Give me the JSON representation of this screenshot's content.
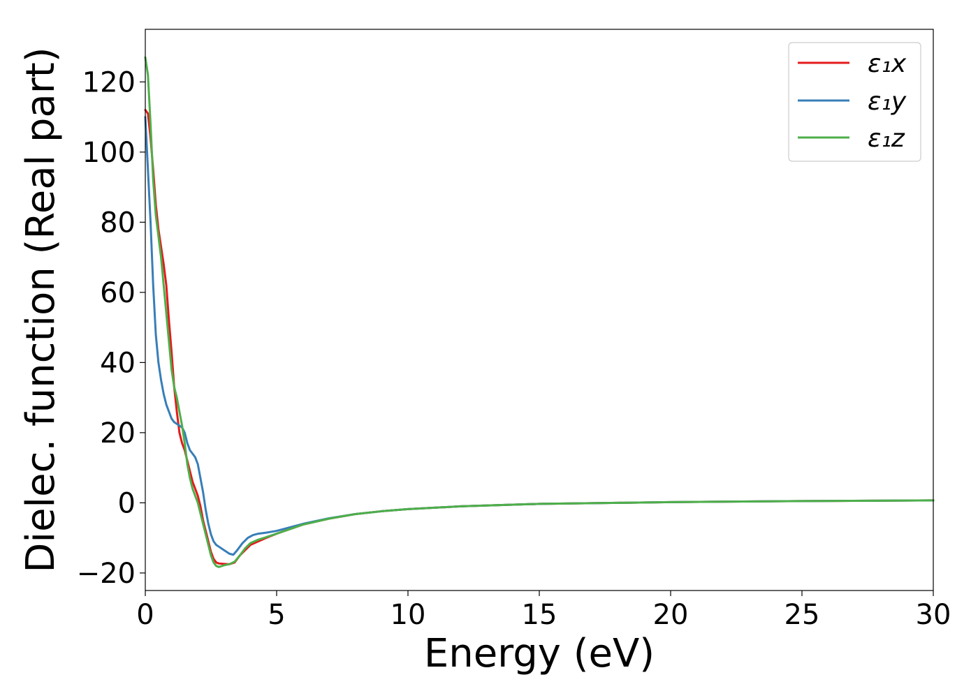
{
  "chart_data": {
    "type": "line",
    "title": "",
    "xlabel": "Energy (eV)",
    "ylabel": "Dielec. function (Real part)",
    "xlim": [
      0,
      30
    ],
    "ylim": [
      -25,
      135
    ],
    "x_ticks": [
      0,
      5,
      10,
      15,
      20,
      25,
      30
    ],
    "x_tick_labels": [
      "0",
      "5",
      "10",
      "15",
      "20",
      "25",
      "30"
    ],
    "y_ticks": [
      -20,
      0,
      20,
      40,
      60,
      80,
      100,
      120
    ],
    "y_tick_labels": [
      "−20",
      "0",
      "20",
      "40",
      "60",
      "80",
      "100",
      "120"
    ],
    "grid": false,
    "legend_position": "top-right",
    "series": [
      {
        "name": "ε₁x",
        "color": "#e41a1c",
        "points": [
          [
            0,
            112
          ],
          [
            0.1,
            111
          ],
          [
            0.2,
            104
          ],
          [
            0.3,
            95
          ],
          [
            0.4,
            85
          ],
          [
            0.5,
            78
          ],
          [
            0.6,
            73
          ],
          [
            0.7,
            68
          ],
          [
            0.8,
            62
          ],
          [
            0.9,
            52
          ],
          [
            1.0,
            43
          ],
          [
            1.1,
            33
          ],
          [
            1.2,
            26
          ],
          [
            1.3,
            20
          ],
          [
            1.4,
            17
          ],
          [
            1.5,
            15
          ],
          [
            1.6,
            12
          ],
          [
            1.7,
            9
          ],
          [
            1.8,
            6
          ],
          [
            1.9,
            4
          ],
          [
            2.0,
            2
          ],
          [
            2.1,
            -1
          ],
          [
            2.2,
            -5
          ],
          [
            2.3,
            -8
          ],
          [
            2.4,
            -11
          ],
          [
            2.5,
            -14
          ],
          [
            2.6,
            -16
          ],
          [
            2.7,
            -17
          ],
          [
            2.8,
            -17.3
          ],
          [
            3.0,
            -17.4
          ],
          [
            3.2,
            -17.5
          ],
          [
            3.4,
            -17
          ],
          [
            3.6,
            -15
          ],
          [
            3.8,
            -13.5
          ],
          [
            4.0,
            -12
          ],
          [
            4.3,
            -11
          ],
          [
            4.6,
            -10
          ],
          [
            5.0,
            -8.8
          ],
          [
            5.5,
            -7.5
          ],
          [
            6.0,
            -6.2
          ],
          [
            7.0,
            -4.5
          ],
          [
            8.0,
            -3.2
          ],
          [
            9.0,
            -2.4
          ],
          [
            10.0,
            -1.8
          ],
          [
            12.0,
            -1.0
          ],
          [
            15.0,
            -0.3
          ],
          [
            18.0,
            0.0
          ],
          [
            20.0,
            0.2
          ],
          [
            25.0,
            0.5
          ],
          [
            30.0,
            0.7
          ]
        ]
      },
      {
        "name": "ε₁y",
        "color": "#377eb8",
        "points": [
          [
            0,
            110
          ],
          [
            0.1,
            95
          ],
          [
            0.2,
            80
          ],
          [
            0.3,
            62
          ],
          [
            0.4,
            48
          ],
          [
            0.5,
            40
          ],
          [
            0.6,
            35
          ],
          [
            0.7,
            31
          ],
          [
            0.8,
            28
          ],
          [
            0.9,
            26
          ],
          [
            1.0,
            24
          ],
          [
            1.1,
            23
          ],
          [
            1.2,
            22.5
          ],
          [
            1.3,
            22
          ],
          [
            1.4,
            21.5
          ],
          [
            1.5,
            20
          ],
          [
            1.6,
            17
          ],
          [
            1.7,
            15
          ],
          [
            1.8,
            14
          ],
          [
            1.9,
            13
          ],
          [
            2.0,
            11
          ],
          [
            2.1,
            7
          ],
          [
            2.2,
            3
          ],
          [
            2.3,
            -2
          ],
          [
            2.4,
            -6
          ],
          [
            2.5,
            -9
          ],
          [
            2.6,
            -11
          ],
          [
            2.7,
            -12
          ],
          [
            2.8,
            -12.5
          ],
          [
            3.0,
            -13.5
          ],
          [
            3.2,
            -14.5
          ],
          [
            3.35,
            -14.8
          ],
          [
            3.5,
            -13.5
          ],
          [
            3.7,
            -11.5
          ],
          [
            3.9,
            -10
          ],
          [
            4.1,
            -9.2
          ],
          [
            4.3,
            -8.8
          ],
          [
            4.6,
            -8.5
          ],
          [
            5.0,
            -8.0
          ],
          [
            5.5,
            -7.0
          ],
          [
            6.0,
            -6.0
          ],
          [
            7.0,
            -4.4
          ],
          [
            8.0,
            -3.2
          ],
          [
            9.0,
            -2.4
          ],
          [
            10.0,
            -1.8
          ],
          [
            12.0,
            -1.0
          ],
          [
            15.0,
            -0.3
          ],
          [
            18.0,
            0.0
          ],
          [
            20.0,
            0.2
          ],
          [
            25.0,
            0.5
          ],
          [
            30.0,
            0.7
          ]
        ]
      },
      {
        "name": "ε₁z",
        "color": "#4daf4a",
        "points": [
          [
            0,
            127
          ],
          [
            0.1,
            122
          ],
          [
            0.2,
            108
          ],
          [
            0.3,
            92
          ],
          [
            0.4,
            82
          ],
          [
            0.5,
            76
          ],
          [
            0.6,
            70
          ],
          [
            0.7,
            62
          ],
          [
            0.8,
            54
          ],
          [
            0.9,
            46
          ],
          [
            1.0,
            38
          ],
          [
            1.1,
            33
          ],
          [
            1.2,
            30
          ],
          [
            1.3,
            26
          ],
          [
            1.4,
            22
          ],
          [
            1.5,
            17
          ],
          [
            1.6,
            11
          ],
          [
            1.7,
            7
          ],
          [
            1.8,
            4
          ],
          [
            1.9,
            2
          ],
          [
            2.0,
            0
          ],
          [
            2.1,
            -3
          ],
          [
            2.2,
            -6
          ],
          [
            2.3,
            -9
          ],
          [
            2.4,
            -12
          ],
          [
            2.5,
            -15
          ],
          [
            2.6,
            -17
          ],
          [
            2.7,
            -18
          ],
          [
            2.8,
            -18.3
          ],
          [
            3.0,
            -17.8
          ],
          [
            3.2,
            -17.5
          ],
          [
            3.4,
            -16.8
          ],
          [
            3.6,
            -15
          ],
          [
            3.8,
            -13
          ],
          [
            4.0,
            -11.5
          ],
          [
            4.3,
            -10.5
          ],
          [
            4.6,
            -9.8
          ],
          [
            5.0,
            -8.8
          ],
          [
            5.5,
            -7.5
          ],
          [
            6.0,
            -6.2
          ],
          [
            7.0,
            -4.5
          ],
          [
            8.0,
            -3.2
          ],
          [
            9.0,
            -2.4
          ],
          [
            10.0,
            -1.8
          ],
          [
            12.0,
            -1.0
          ],
          [
            15.0,
            -0.3
          ],
          [
            18.0,
            0.0
          ],
          [
            20.0,
            0.2
          ],
          [
            25.0,
            0.5
          ],
          [
            30.0,
            0.7
          ]
        ]
      }
    ]
  }
}
